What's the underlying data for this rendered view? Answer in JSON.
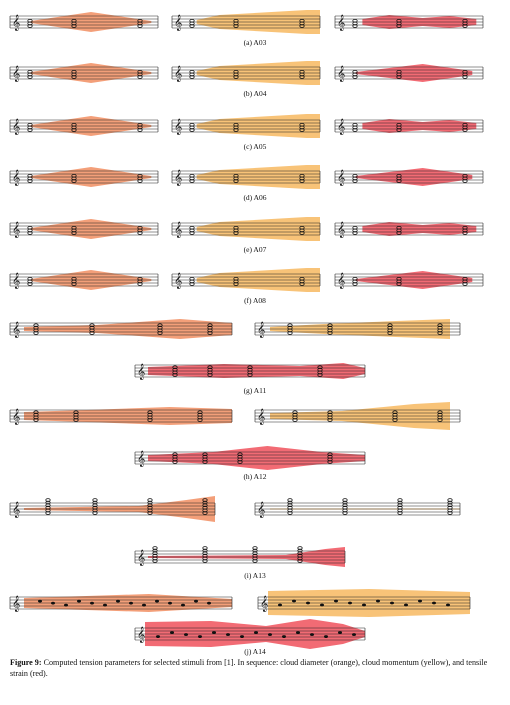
{
  "figure": {
    "panels": [
      {
        "label": "(a) A03"
      },
      {
        "label": "(b) A04"
      },
      {
        "label": "(c) A05"
      },
      {
        "label": "(d) A06"
      },
      {
        "label": "(e) A07"
      },
      {
        "label": "(f) A08"
      },
      {
        "label": "(g) A11"
      },
      {
        "label": "(h) A12"
      },
      {
        "label": "(i) A13"
      },
      {
        "label": "(j) A14"
      }
    ],
    "colors": {
      "cloud_diameter": "#f08a5c",
      "cloud_momentum": "#f6b65a",
      "tensile_strain": "#ef4a55"
    },
    "caption": {
      "prefix": "Figure 9:",
      "text": "Computed tension parameters for selected stimuli from [1]. In sequence: cloud diameter (orange), cloud momentum (yellow), and tensile strain (red)."
    }
  }
}
